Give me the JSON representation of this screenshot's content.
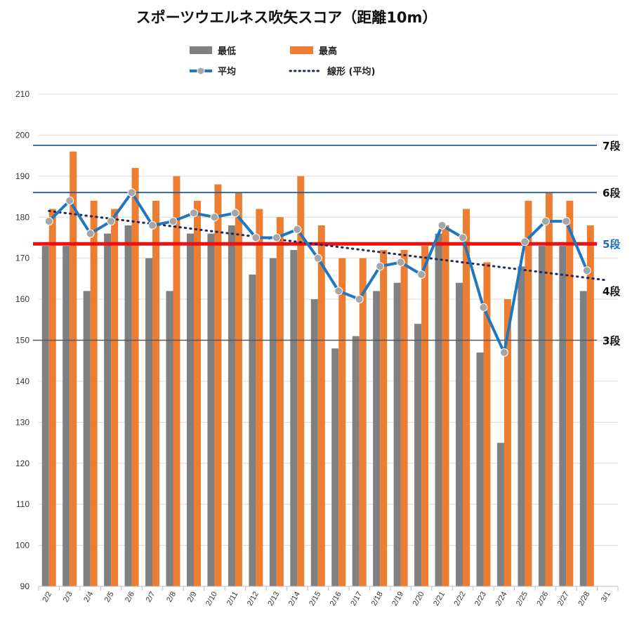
{
  "chart_data": {
    "type": "bar",
    "title": "スポーツウエルネス吹矢スコア（距離10m）",
    "categories": [
      "2/2",
      "2/3",
      "2/4",
      "2/5",
      "2/6",
      "2/7",
      "2/8",
      "2/9",
      "2/10",
      "2/11",
      "2/12",
      "2/13",
      "2/14",
      "2/15",
      "2/16",
      "2/17",
      "2/18",
      "2/19",
      "2/20",
      "2/21",
      "2/22",
      "2/23",
      "2/24",
      "2/25",
      "2/26",
      "2/27",
      "2/28",
      "3/1"
    ],
    "ylim": [
      90,
      210
    ],
    "yticks": [
      90,
      100,
      110,
      120,
      130,
      140,
      150,
      160,
      170,
      180,
      190,
      200,
      210
    ],
    "grid": true,
    "legend_position": "top",
    "series": [
      {
        "name": "最低",
        "type": "bar",
        "color": "#808080",
        "values": [
          173,
          173,
          162,
          176,
          178,
          170,
          162,
          176,
          176,
          178,
          166,
          170,
          172,
          160,
          148,
          151,
          162,
          164,
          154,
          176,
          164,
          147,
          125,
          168,
          173,
          173,
          162,
          null
        ]
      },
      {
        "name": "最高",
        "type": "bar",
        "color": "#ED7D31",
        "values": [
          182,
          196,
          184,
          182,
          192,
          184,
          190,
          184,
          188,
          186,
          182,
          180,
          190,
          178,
          170,
          170,
          172,
          172,
          173,
          178,
          182,
          169,
          160,
          184,
          186,
          184,
          178,
          null
        ]
      },
      {
        "name": "平均",
        "type": "line",
        "color": "#1F77C0",
        "marker_color": "#A6A6A6",
        "values": [
          179,
          184,
          176,
          179,
          186,
          178,
          179,
          181,
          180,
          181,
          175,
          175,
          177,
          170,
          162,
          160,
          168,
          169,
          166,
          178,
          175,
          158,
          147,
          174,
          179,
          179,
          167,
          null
        ]
      },
      {
        "name": "線形 (平均)",
        "type": "trendline",
        "color": "#1F2A5C",
        "style": "dotted",
        "start": [
          0,
          181.5
        ],
        "end": [
          27,
          164.6
        ]
      }
    ],
    "reference_lines": [
      {
        "label": "7段",
        "value": 197.5,
        "color": "#1F5FA8",
        "label_color": "#111111"
      },
      {
        "label": "6段",
        "value": 186,
        "color": "#1F5FA8",
        "label_color": "#111111"
      },
      {
        "label": "5段",
        "value": 173.5,
        "color": "#EE1111",
        "label_color": "#1F6FB5"
      },
      {
        "label": "4段",
        "value": null,
        "color": null,
        "label_color": "#111111"
      },
      {
        "label": "3段",
        "value": 150,
        "color": "#595959",
        "label_color": "#111111"
      }
    ]
  }
}
